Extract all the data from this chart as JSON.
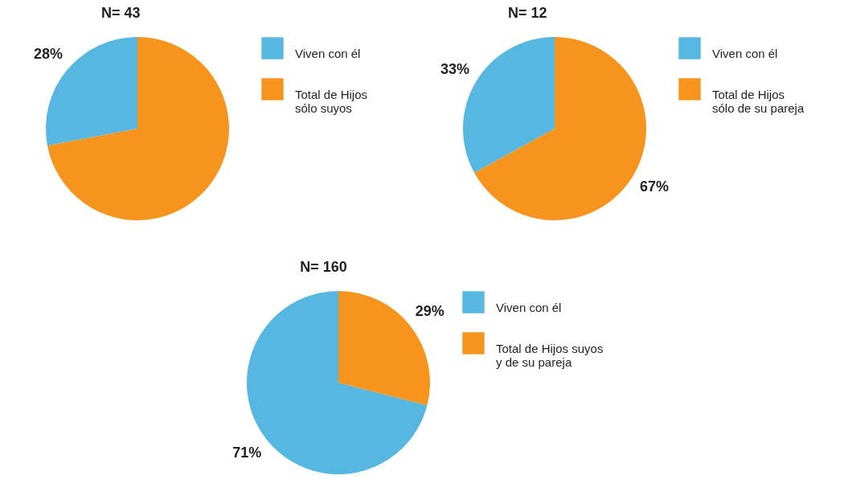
{
  "chart_data": [
    {
      "type": "pie",
      "title": "N= 43",
      "categories": [
        "Viven con él",
        "Total de Hijos\nsólo suyos"
      ],
      "values": [
        28,
        72
      ],
      "value_labels": [
        "28%",
        null
      ],
      "colors": [
        "#56b7e0",
        "#f7941d"
      ],
      "legend": "right"
    },
    {
      "type": "pie",
      "title": "N= 12",
      "categories": [
        "Viven con él",
        "Total de Hijos\nsólo de su pareja"
      ],
      "values": [
        33,
        67
      ],
      "value_labels": [
        "33%",
        "67%"
      ],
      "colors": [
        "#56b7e0",
        "#f7941d"
      ],
      "legend": "right"
    },
    {
      "type": "pie",
      "title": "N= 160",
      "categories": [
        "Viven con él",
        "Total de Hijos suyos\ny de su pareja"
      ],
      "values": [
        71,
        29
      ],
      "value_labels": [
        "71%",
        "29%"
      ],
      "colors": [
        "#56b7e0",
        "#f7941d"
      ],
      "legend": "right"
    }
  ]
}
